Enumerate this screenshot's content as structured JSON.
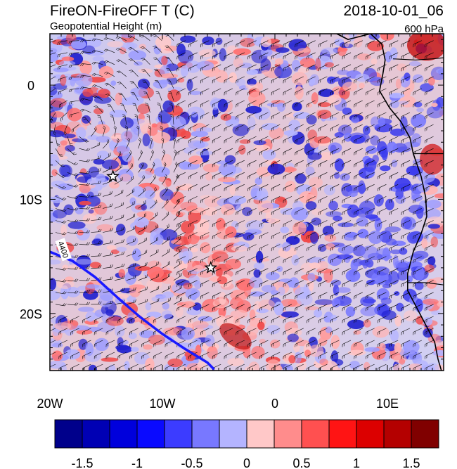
{
  "header": {
    "title_left": "FireON-FireOFF T (C)",
    "subtitle_left": "Geopotential Height (m)",
    "title_right": "2018-10-01_06",
    "subtitle_right": "600 hPa"
  },
  "map": {
    "lon_range": [
      -20,
      15
    ],
    "lat_range": [
      -25,
      4.5
    ],
    "x_ticks": [
      {
        "value": -20,
        "label": "20W"
      },
      {
        "value": -10,
        "label": "10W"
      },
      {
        "value": 0,
        "label": "0"
      },
      {
        "value": 10,
        "label": "10E"
      }
    ],
    "y_ticks": [
      {
        "value": 0,
        "label": "0"
      },
      {
        "value": -10,
        "label": "10S"
      },
      {
        "value": -20,
        "label": "20S"
      }
    ],
    "contour": {
      "label": "4400",
      "color": "#1a1aff",
      "points": [
        [
          -20,
          -14.6
        ],
        [
          -18,
          -15.4
        ],
        [
          -16,
          -16.8
        ],
        [
          -14,
          -18.6
        ],
        [
          -12,
          -20.3
        ],
        [
          -10,
          -21.8
        ],
        [
          -8,
          -23.1
        ],
        [
          -6,
          -24.3
        ],
        [
          -5.4,
          -24.9
        ]
      ]
    },
    "stars": [
      {
        "lon": -14.4,
        "lat": -8.0
      },
      {
        "lon": -5.7,
        "lat": -16.0
      }
    ],
    "colors": {
      "warm_band": "#f04848",
      "cool_region": "#3a3aee",
      "background_mix": "#d2d2f6",
      "land_outline": "#000000"
    }
  },
  "colorbar": {
    "colors": [
      "#00008b",
      "#0000b4",
      "#0000dc",
      "#0a0aff",
      "#3c3cff",
      "#7878ff",
      "#b4b4ff",
      "#ffc8c8",
      "#ff8c8c",
      "#ff5050",
      "#ff1414",
      "#dc0000",
      "#b40000",
      "#800000"
    ],
    "tick_labels": [
      "-1.5",
      "-1",
      "-0.5",
      "0",
      "0.5",
      "1",
      "1.5"
    ]
  }
}
